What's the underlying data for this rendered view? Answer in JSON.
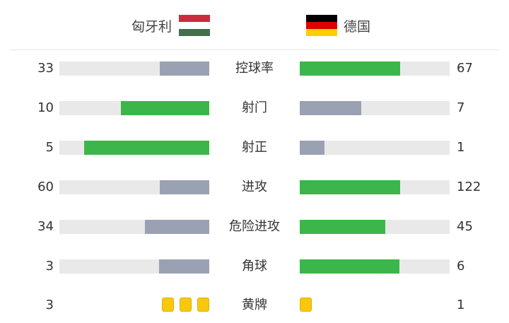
{
  "header": {
    "home": {
      "name": "匈牙利",
      "flag": [
        "#cd2a3e",
        "#ffffff",
        "#436f4d"
      ]
    },
    "away": {
      "name": "德国",
      "flag": [
        "#000000",
        "#dd0000",
        "#ffce00"
      ]
    }
  },
  "colors": {
    "winner": "#3cb64a",
    "loser": "#9aa1b2",
    "track": "#e9e9e9",
    "card": "#f9c80e"
  },
  "stats": [
    {
      "label": "控球率",
      "home": "33",
      "away": "67",
      "h": 33,
      "a": 67
    },
    {
      "label": "射门",
      "home": "10",
      "away": "7",
      "h": 10,
      "a": 7
    },
    {
      "label": "射正",
      "home": "5",
      "away": "1",
      "h": 5,
      "a": 1
    },
    {
      "label": "进攻",
      "home": "60",
      "away": "122",
      "h": 60,
      "a": 122
    },
    {
      "label": "危险进攻",
      "home": "34",
      "away": "45",
      "h": 34,
      "a": 45
    },
    {
      "label": "角球",
      "home": "3",
      "away": "6",
      "h": 3,
      "a": 6
    }
  ],
  "yellow": {
    "label": "黄牌",
    "home": "3",
    "away": "1",
    "h": 3,
    "a": 1
  }
}
